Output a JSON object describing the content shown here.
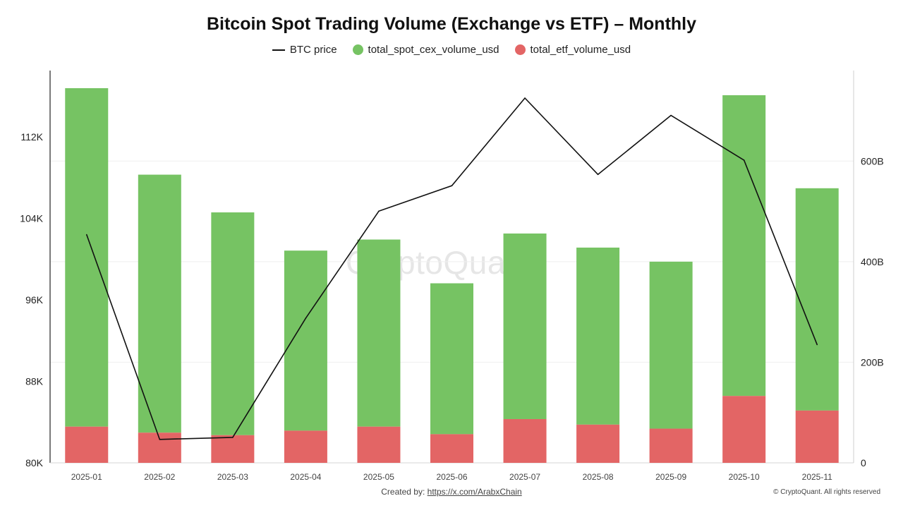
{
  "chart_data": {
    "type": "bar",
    "title": "Bitcoin Spot Trading Volume (Exchange vs ETF) – Monthly",
    "categories": [
      "2025-01",
      "2025-02",
      "2025-03",
      "2025-04",
      "2025-05",
      "2025-06",
      "2025-07",
      "2025-08",
      "2025-09",
      "2025-10",
      "2025-11"
    ],
    "stacked": true,
    "series": [
      {
        "name": "total_etf_volume_usd",
        "color": "#e36565",
        "axis": "right",
        "values": [
          72,
          60,
          55,
          64,
          72,
          57,
          87,
          76,
          68,
          133,
          104
        ]
      },
      {
        "name": "total_spot_cex_volume_usd",
        "color": "#76c363",
        "axis": "right",
        "values": [
          673,
          513,
          443,
          358,
          372,
          300,
          369,
          352,
          332,
          598,
          442
        ]
      }
    ],
    "line": {
      "name": "BTC price",
      "color": "#111111",
      "axis": "left",
      "values": [
        102400,
        82300,
        82500,
        94200,
        104700,
        107200,
        115800,
        108300,
        114100,
        109700,
        91600
      ]
    },
    "y_left": {
      "ticks": [
        80000,
        88000,
        96000,
        104000,
        112000
      ],
      "tick_labels": [
        "80K",
        "88K",
        "96K",
        "104K",
        "112K"
      ],
      "range": [
        80000,
        118500
      ]
    },
    "y_right": {
      "ticks": [
        0,
        200,
        400,
        600
      ],
      "tick_labels": [
        "0",
        "200B",
        "400B",
        "600B"
      ],
      "range": [
        0,
        780
      ],
      "unit": "B USD"
    },
    "legend_position": "top-center",
    "grid": true
  },
  "legend": {
    "btc_price": "BTC price",
    "spot": "total_spot_cex_volume_usd",
    "etf": "total_etf_volume_usd"
  },
  "watermark": "CryptoQuant",
  "footer": {
    "created_label": "Created by:",
    "created_link": "https://x.com/ArabxChain",
    "copyright": "© CryptoQuant. All rights reserved"
  }
}
